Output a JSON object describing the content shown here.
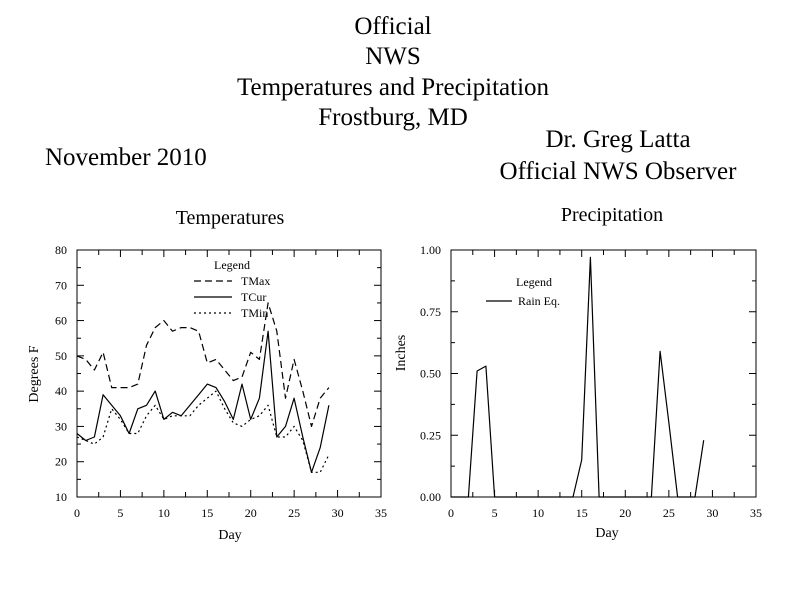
{
  "header": {
    "title_lines": [
      "Official",
      "NWS",
      "Temperatures and Precipitation",
      "Frostburg, MD"
    ],
    "month": "November 2010",
    "observer_name": "Dr. Greg Latta",
    "observer_title": "Official NWS Observer"
  },
  "chart_data": [
    {
      "type": "line",
      "title": "Temperatures",
      "xlabel": "Day",
      "ylabel": "Degrees F",
      "xlim": [
        0,
        35
      ],
      "ylim": [
        10,
        80
      ],
      "xticks": [
        0,
        5,
        10,
        15,
        20,
        25,
        30,
        35
      ],
      "yticks": [
        10,
        20,
        30,
        40,
        50,
        60,
        70,
        80
      ],
      "grid": false,
      "legend_title": "Legend",
      "legend_position": "top-center",
      "series": [
        {
          "name": "TMax",
          "style": "dashed",
          "x": [
            0,
            1,
            2,
            3,
            4,
            5,
            6,
            7,
            8,
            9,
            10,
            11,
            12,
            13,
            14,
            15,
            16,
            17,
            18,
            19,
            20,
            21,
            22,
            23,
            24,
            25,
            26,
            27,
            28,
            29
          ],
          "values": [
            50,
            49,
            46,
            51,
            41,
            41,
            41,
            42,
            53,
            58,
            60,
            57,
            58,
            58,
            57,
            48,
            49,
            46,
            43,
            44,
            51,
            49,
            65,
            57,
            38,
            49,
            40,
            30,
            38,
            41
          ]
        },
        {
          "name": "TCur",
          "style": "solid",
          "x": [
            0,
            1,
            2,
            3,
            4,
            5,
            6,
            7,
            8,
            9,
            10,
            11,
            12,
            13,
            14,
            15,
            16,
            17,
            18,
            19,
            20,
            21,
            22,
            23,
            24,
            25,
            26,
            27,
            28,
            29
          ],
          "values": [
            28,
            26,
            27,
            39,
            36,
            33,
            28,
            35,
            36,
            40,
            32,
            34,
            33,
            36,
            39,
            42,
            41,
            37,
            32,
            42,
            32,
            38,
            57,
            27,
            30,
            38,
            27,
            17,
            24,
            36
          ]
        },
        {
          "name": "TMin",
          "style": "dotted",
          "x": [
            0,
            1,
            2,
            3,
            4,
            5,
            6,
            7,
            8,
            9,
            10,
            11,
            12,
            13,
            14,
            15,
            16,
            17,
            18,
            19,
            20,
            21,
            22,
            23,
            24,
            25,
            26,
            27,
            28,
            29
          ],
          "values": [
            27,
            26,
            25,
            27,
            35,
            32,
            28,
            28,
            33,
            36,
            32,
            33,
            33,
            33,
            36,
            38,
            40,
            35,
            31,
            30,
            32,
            33,
            36,
            27,
            27,
            30,
            26,
            17,
            17,
            22
          ]
        }
      ]
    },
    {
      "type": "line",
      "title": "Precipitation",
      "xlabel": "Day",
      "ylabel": "Inches",
      "xlim": [
        0,
        35
      ],
      "ylim": [
        0,
        1
      ],
      "xticks": [
        0,
        5,
        10,
        15,
        20,
        25,
        30,
        35
      ],
      "yticks": [
        0,
        0.25,
        0.5,
        0.75,
        1
      ],
      "ytick_labels": [
        "0.00",
        "0.25",
        "0.50",
        "0.75",
        "1.00"
      ],
      "grid": false,
      "legend_title": "Legend",
      "legend_position": "top-left",
      "series": [
        {
          "name": "Rain Eq.",
          "style": "solid",
          "x": [
            0,
            1,
            2,
            3,
            4,
            5,
            6,
            7,
            8,
            9,
            10,
            11,
            12,
            13,
            14,
            15,
            16,
            17,
            18,
            19,
            20,
            21,
            22,
            23,
            24,
            25,
            26,
            27,
            28,
            29
          ],
          "values": [
            0,
            0,
            0,
            0.51,
            0.53,
            0,
            0,
            0,
            0,
            0,
            0,
            0,
            0,
            0,
            0,
            0.15,
            0.97,
            0,
            0,
            0,
            0,
            0,
            0,
            0,
            0.59,
            0.3,
            0,
            0,
            0,
            0.23
          ]
        }
      ]
    }
  ]
}
